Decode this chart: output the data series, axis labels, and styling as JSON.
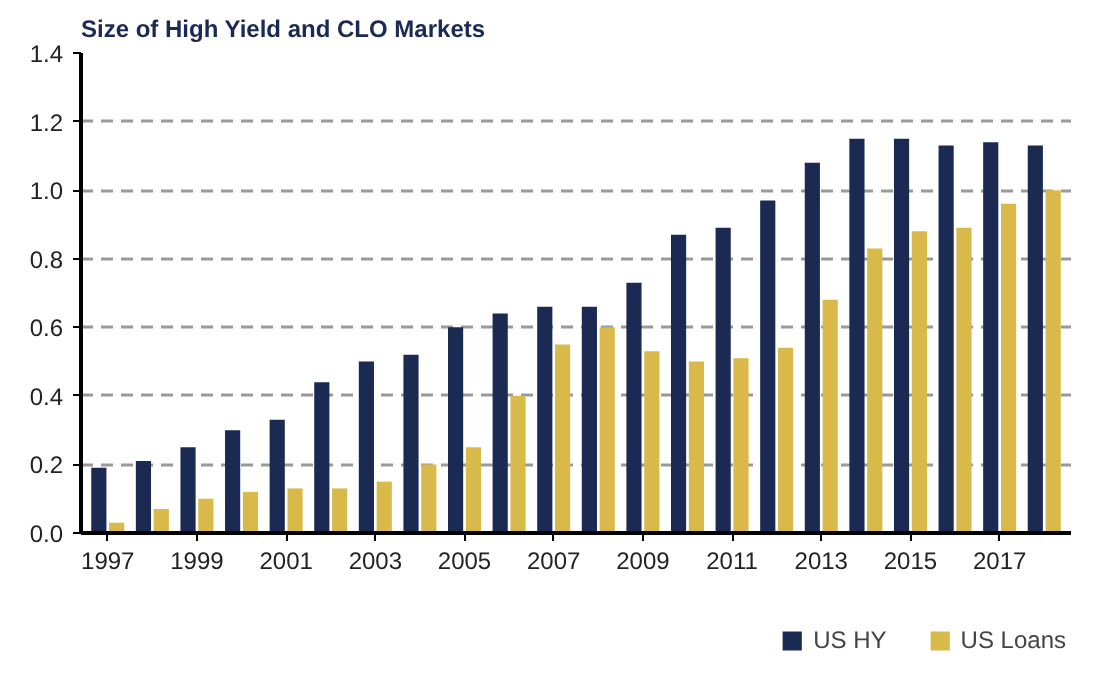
{
  "chart_data": {
    "type": "bar",
    "title": "Size of High Yield and CLO Markets",
    "categories": [
      "1997",
      null,
      "1999",
      null,
      "2001",
      null,
      "2003",
      null,
      "2005",
      null,
      "2007",
      null,
      "2009",
      null,
      "2011",
      null,
      "2013",
      null,
      "2015",
      null,
      "2017",
      null
    ],
    "series": [
      {
        "name": "US HY",
        "color": "#1b2a52",
        "values": [
          0.19,
          0.21,
          0.25,
          0.3,
          0.33,
          0.44,
          0.5,
          0.52,
          0.6,
          0.64,
          0.66,
          0.66,
          0.73,
          0.87,
          0.89,
          0.97,
          1.08,
          1.15,
          1.15,
          1.13,
          1.14,
          1.13
        ]
      },
      {
        "name": "US Loans",
        "color": "#d9b94a",
        "values": [
          0.03,
          0.07,
          0.1,
          0.12,
          0.13,
          0.13,
          0.15,
          0.2,
          0.25,
          0.4,
          0.55,
          0.6,
          0.53,
          0.5,
          0.51,
          0.54,
          0.68,
          0.83,
          0.88,
          0.89,
          0.96,
          1.0
        ]
      }
    ],
    "ylim": [
      0,
      1.4
    ],
    "yticks": [
      {
        "value": 0,
        "label": "0.0"
      },
      0.2,
      0.4,
      0.6,
      0.8,
      {
        "value": 1,
        "label": "1.0"
      },
      1.2,
      1.4
    ],
    "grid": "y",
    "legend": "bottom"
  }
}
